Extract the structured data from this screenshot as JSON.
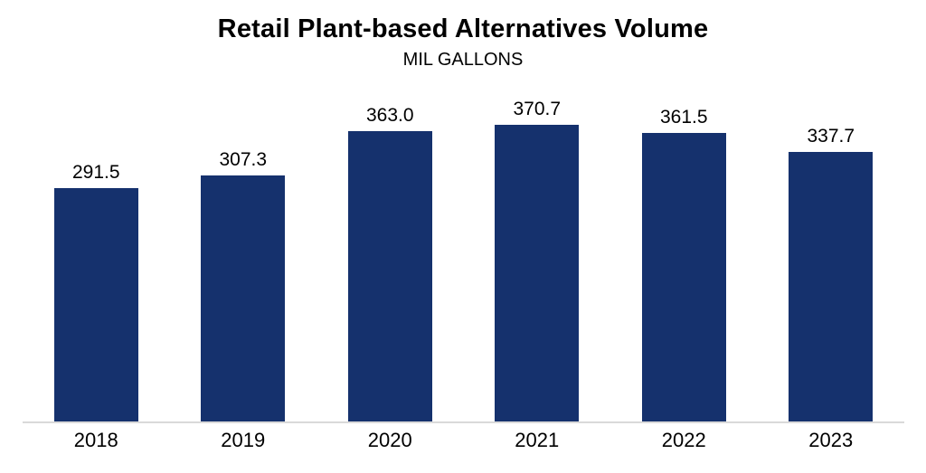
{
  "title": "Retail Plant-based Alternatives Volume",
  "subtitle": "MIL GALLONS",
  "colors": {
    "bar": "#15316D",
    "axis_line": "#D9D9D9",
    "text": "#000000",
    "background": "#FFFFFF"
  },
  "chart_data": {
    "type": "bar",
    "title": "Retail Plant-based Alternatives Volume",
    "subtitle": "MIL GALLONS",
    "unit": "MIL GALLONS",
    "categories": [
      "2018",
      "2019",
      "2020",
      "2021",
      "2022",
      "2023"
    ],
    "values": [
      291.5,
      307.3,
      363.0,
      370.7,
      361.5,
      337.7
    ],
    "xlabel": "",
    "ylabel": "MIL GALLONS",
    "ylim": [
      0,
      430
    ],
    "grid": false,
    "legend": false,
    "data_labels": true,
    "data_label_decimals": 1
  }
}
